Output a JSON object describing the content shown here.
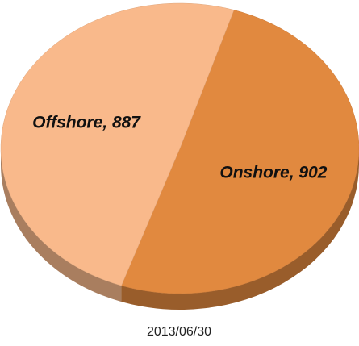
{
  "chart_data": {
    "type": "pie",
    "title": "2013/06/30",
    "categories": [
      "Offshore",
      "Onshore"
    ],
    "values": [
      887,
      902
    ],
    "value_labels": [
      "Offshore, 887",
      "Onshore, 902"
    ],
    "colors": [
      "#f9b98b",
      "#e1893f"
    ]
  }
}
